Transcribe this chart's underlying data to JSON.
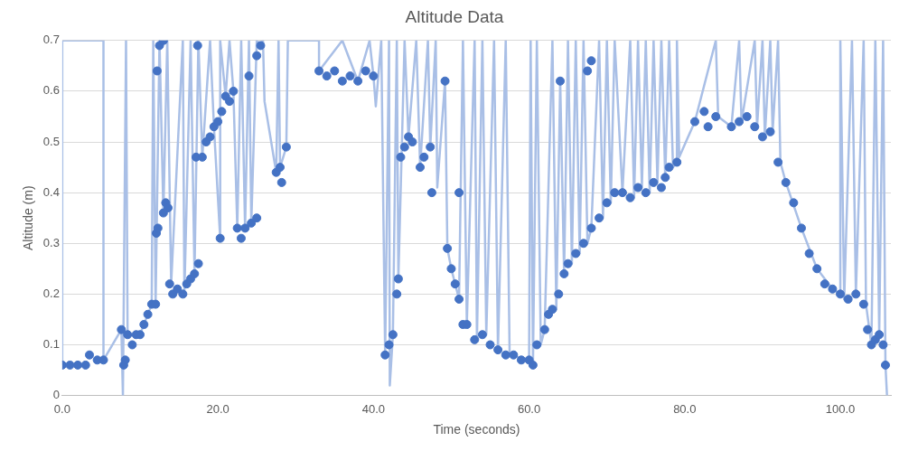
{
  "chart_data": {
    "type": "scatter",
    "title": "Altitude Data",
    "xlabel": "Time (seconds)",
    "ylabel": "Altitude (m)",
    "xlim": [
      0,
      106.5
    ],
    "xticks": [
      {
        "value": 0,
        "label": "0.0"
      },
      {
        "value": 20,
        "label": "20.0"
      },
      {
        "value": 40,
        "label": "40.0"
      },
      {
        "value": 60,
        "label": "60.0"
      },
      {
        "value": 80,
        "label": "80.0"
      },
      {
        "value": 100,
        "label": "100.0"
      }
    ],
    "ylim": [
      0,
      0.7
    ],
    "yticks": [
      0,
      0.1,
      0.2,
      0.3,
      0.4,
      0.5,
      0.6,
      0.7
    ],
    "grid": "y",
    "legend": false,
    "marker": "circle",
    "series": [
      {
        "type": "line",
        "marker": "none",
        "color": "#a9bfe6",
        "x": [
          0,
          0,
          5.3,
          5.3,
          7.6,
          7.8,
          8.2,
          8.4,
          10,
          11.5,
          11.7,
          12,
          12.5,
          13,
          13.5,
          14,
          15.5,
          15.7,
          16.5,
          17,
          17.5,
          18,
          19,
          19.5,
          20.3,
          20.3,
          21,
          21.5,
          22,
          22.5,
          23,
          23.5,
          24,
          24.3,
          25,
          25.5,
          25.8,
          26,
          27.5,
          27.8,
          28,
          28.8,
          29,
          33,
          33,
          36,
          38,
          39.5,
          40,
          40.3,
          41,
          41.5,
          42,
          42.1,
          42.5,
          43,
          43.2,
          44,
          44.5,
          45.5,
          46,
          47,
          47.3,
          48,
          48.2,
          49.2,
          49.5,
          50,
          51,
          51.5,
          52,
          53,
          53.3,
          54,
          54.5,
          55.5,
          56,
          57,
          57.5,
          60,
          60.2,
          60.5,
          61,
          61.5,
          62,
          63,
          63.5,
          64,
          64.5,
          65,
          65.5,
          66,
          66.5,
          67,
          67.5,
          68,
          69,
          69.5,
          70,
          70.5,
          71,
          72,
          73,
          73.5,
          74,
          74.5,
          75,
          75.5,
          76,
          76.5,
          77,
          77.5,
          78,
          78.5,
          79,
          79,
          79.3,
          81.3,
          84,
          84.3,
          86,
          87,
          87.3,
          89,
          89.3,
          90,
          90.3,
          91,
          91.3,
          92,
          92.3,
          93,
          95,
          97,
          99,
          100,
          100,
          100.5,
          101.5,
          102,
          103,
          103.3,
          104,
          104.5,
          105,
          105.5,
          105.8,
          106
        ],
        "values": [
          0.06,
          0.7,
          0.7,
          0.07,
          0.13,
          0,
          0.7,
          0.12,
          0.12,
          0.18,
          0.7,
          0.18,
          0.7,
          0.36,
          0.7,
          0.22,
          0.7,
          0.2,
          0.7,
          0.24,
          0.7,
          0.47,
          0.7,
          0.53,
          0.31,
          0.7,
          0.59,
          0.7,
          0.6,
          0.33,
          0.7,
          0.33,
          0.7,
          0.34,
          0.7,
          0.69,
          0.7,
          0.58,
          0.44,
          0.7,
          0.45,
          0.49,
          0.7,
          0.7,
          0.64,
          0.7,
          0.62,
          0.7,
          0.63,
          0.57,
          0.7,
          0.08,
          0.7,
          0.02,
          0.12,
          0.7,
          0.23,
          0.7,
          0.51,
          0.7,
          0.45,
          0.7,
          0.49,
          0.7,
          0.41,
          0.62,
          0.29,
          0.25,
          0.19,
          0.7,
          0.14,
          0.7,
          0.11,
          0.7,
          0.12,
          0.7,
          0.09,
          0.7,
          0.08,
          0.07,
          0.7,
          0.06,
          0.7,
          0.1,
          0.13,
          0.7,
          0.17,
          0.62,
          0.24,
          0.7,
          0.26,
          0.7,
          0.28,
          0.7,
          0.3,
          0.33,
          0.7,
          0.35,
          0.7,
          0.38,
          0.7,
          0.4,
          0.7,
          0.39,
          0.7,
          0.41,
          0.7,
          0.4,
          0.7,
          0.42,
          0.7,
          0.43,
          0.7,
          0.45,
          0.46,
          0.7,
          0.47,
          0.54,
          0.7,
          0.55,
          0.53,
          0.7,
          0.54,
          0.7,
          0.53,
          0.7,
          0.51,
          0.7,
          0.52,
          0.7,
          0.46,
          0.42,
          0.33,
          0.25,
          0.21,
          0.2,
          0.7,
          0.19,
          0.7,
          0.2,
          0.7,
          0.18,
          0.1,
          0.7,
          0.12,
          0.7,
          0.06,
          0
        ]
      },
      {
        "color": "#4472c4",
        "x": [
          0,
          1,
          2,
          3,
          3.5,
          4.5,
          5.3,
          7.6,
          7.9,
          8.1,
          8.4,
          9,
          9.5,
          10,
          10.5,
          11,
          11.5,
          12,
          12.1,
          12.3,
          12.2,
          12.5,
          13,
          13,
          13.3,
          13.6,
          13.8,
          14.2,
          14.8,
          15.5,
          16,
          16.5,
          17,
          17.5,
          17.2,
          17.4,
          18,
          18.5,
          19,
          19.5,
          20,
          20.3,
          20.5,
          21,
          21.5,
          22,
          22.5,
          23,
          23.5,
          24,
          24.3,
          25,
          25,
          25.5,
          27.5,
          28,
          28.2,
          28.8,
          33,
          34,
          35,
          36,
          37,
          38,
          39,
          40,
          41.5,
          42,
          42.5,
          43,
          43.2,
          43.5,
          44,
          44.5,
          45,
          46,
          46.5,
          47.3,
          47.5,
          49.2,
          49.5,
          50,
          50.5,
          51,
          51,
          51.5,
          52,
          53,
          54,
          55,
          56,
          57,
          58,
          59,
          60,
          60.5,
          61,
          62,
          62.5,
          63,
          63.8,
          64,
          64.5,
          65,
          66,
          67,
          67.5,
          68,
          68,
          69,
          70,
          71,
          72,
          73,
          74,
          75,
          76,
          77,
          77.5,
          78,
          79,
          81.3,
          82.5,
          83,
          84,
          86,
          87,
          88,
          89,
          90,
          91,
          92,
          93,
          94,
          95,
          96,
          97,
          98,
          99,
          100,
          101,
          102,
          103,
          103.5,
          104,
          104.5,
          105,
          105.5,
          105.8
        ],
        "values": [
          0.06,
          0.06,
          0.06,
          0.06,
          0.08,
          0.07,
          0.07,
          0.13,
          0.06,
          0.07,
          0.12,
          0.1,
          0.12,
          0.12,
          0.14,
          0.16,
          0.18,
          0.18,
          0.32,
          0.33,
          0.64,
          0.69,
          0.7,
          0.36,
          0.38,
          0.37,
          0.22,
          0.2,
          0.21,
          0.2,
          0.22,
          0.23,
          0.24,
          0.26,
          0.47,
          0.69,
          0.47,
          0.5,
          0.51,
          0.53,
          0.54,
          0.31,
          0.56,
          0.59,
          0.58,
          0.6,
          0.33,
          0.31,
          0.33,
          0.63,
          0.34,
          0.35,
          0.67,
          0.69,
          0.44,
          0.45,
          0.42,
          0.49,
          0.64,
          0.63,
          0.64,
          0.62,
          0.63,
          0.62,
          0.64,
          0.63,
          0.08,
          0.1,
          0.12,
          0.2,
          0.23,
          0.47,
          0.49,
          0.51,
          0.5,
          0.45,
          0.47,
          0.49,
          0.4,
          0.62,
          0.29,
          0.25,
          0.22,
          0.4,
          0.19,
          0.14,
          0.14,
          0.11,
          0.12,
          0.1,
          0.09,
          0.08,
          0.08,
          0.07,
          0.07,
          0.06,
          0.1,
          0.13,
          0.16,
          0.17,
          0.2,
          0.62,
          0.24,
          0.26,
          0.28,
          0.3,
          0.64,
          0.66,
          0.33,
          0.35,
          0.38,
          0.4,
          0.4,
          0.39,
          0.41,
          0.4,
          0.42,
          0.41,
          0.43,
          0.45,
          0.46,
          0.54,
          0.56,
          0.53,
          0.55,
          0.53,
          0.54,
          0.55,
          0.53,
          0.51,
          0.52,
          0.46,
          0.42,
          0.38,
          0.33,
          0.28,
          0.25,
          0.22,
          0.21,
          0.2,
          0.19,
          0.2,
          0.18,
          0.13,
          0.1,
          0.11,
          0.12,
          0.1,
          0.06
        ]
      }
    ]
  }
}
